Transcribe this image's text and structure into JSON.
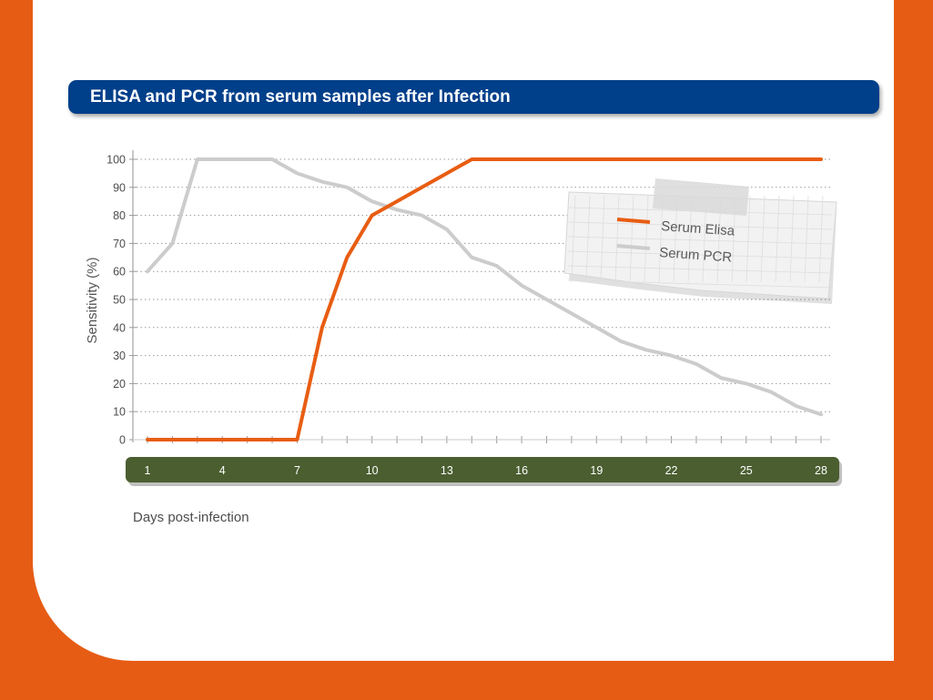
{
  "header": {
    "title": "ELISA and PCR from serum samples after Infection"
  },
  "colors": {
    "background": "#e75c14",
    "title_bar": "#003f8a",
    "x_axis_band": "#4a5e30",
    "elisa": "#e85d12",
    "pcr": "#cccccc"
  },
  "chart_data": {
    "type": "line",
    "title": "ELISA and PCR from serum samples after Infection",
    "xlabel": "Days post-infection",
    "ylabel": "Sensitivity (%)",
    "xlim": [
      1,
      28
    ],
    "ylim": [
      0,
      100
    ],
    "x_ticks": [
      1,
      4,
      7,
      10,
      13,
      16,
      19,
      22,
      25,
      28
    ],
    "y_ticks": [
      0,
      10,
      20,
      30,
      40,
      50,
      60,
      70,
      80,
      90,
      100
    ],
    "grid": "horizontal dotted",
    "legend_position": "top-right",
    "series": [
      {
        "name": "Serum Elisa",
        "color": "#e85d12",
        "points": [
          [
            1,
            0
          ],
          [
            7,
            0
          ],
          [
            8,
            40
          ],
          [
            9,
            65
          ],
          [
            10,
            80
          ],
          [
            11,
            85
          ],
          [
            12,
            90
          ],
          [
            13,
            95
          ],
          [
            14,
            100
          ],
          [
            28,
            100
          ]
        ]
      },
      {
        "name": "Serum PCR",
        "color": "#cccccc",
        "points": [
          [
            1,
            60
          ],
          [
            2,
            70
          ],
          [
            3,
            100
          ],
          [
            6,
            100
          ],
          [
            7,
            95
          ],
          [
            8,
            92
          ],
          [
            9,
            90
          ],
          [
            10,
            85
          ],
          [
            11,
            82
          ],
          [
            12,
            80
          ],
          [
            13,
            75
          ],
          [
            14,
            65
          ],
          [
            15,
            62
          ],
          [
            16,
            55
          ],
          [
            17,
            50
          ],
          [
            18,
            45
          ],
          [
            19,
            40
          ],
          [
            20,
            35
          ],
          [
            21,
            32
          ],
          [
            22,
            30
          ],
          [
            23,
            27
          ],
          [
            24,
            22
          ],
          [
            25,
            20
          ],
          [
            26,
            17
          ],
          [
            27,
            12
          ],
          [
            28,
            9
          ]
        ]
      }
    ]
  }
}
